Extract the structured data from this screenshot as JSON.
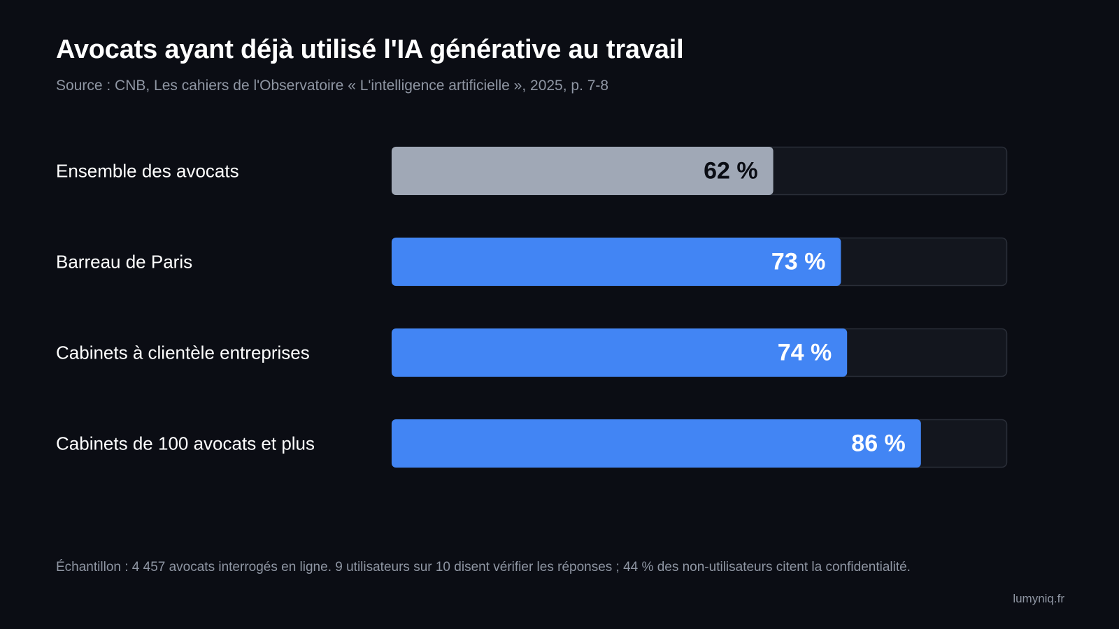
{
  "header": {
    "title": "Avocats ayant déjà utilisé l'IA générative au travail",
    "source": "Source : CNB, Les cahiers de l'Observatoire « L'intelligence artificielle », 2025, p. 7-8"
  },
  "chart_data": {
    "type": "bar",
    "orientation": "horizontal",
    "title": "Avocats ayant déjà utilisé l'IA générative au travail",
    "categories": [
      "Ensemble des avocats",
      "Barreau de Paris",
      "Cabinets à clientèle entreprises",
      "Cabinets de 100 avocats et plus"
    ],
    "values": [
      62,
      73,
      74,
      86
    ],
    "value_labels": [
      "62 %",
      "73 %",
      "74 %",
      "86 %"
    ],
    "xlim": [
      0,
      100
    ],
    "unit": "%",
    "grid": false,
    "legend": "none",
    "colors": {
      "highlight": "#a0a8b6",
      "bar": "#4285f4",
      "track": "#13161e",
      "track_border": "#2a2e38",
      "highlight_text": "#0b0d14",
      "bar_text": "#ffffff"
    },
    "highlight_index": 0
  },
  "footer": {
    "note": "Échantillon : 4 457 avocats interrogés en ligne. 9 utilisateurs sur 10 disent vérifier les réponses ; 44 % des non-utilisateurs citent la confidentialité.",
    "brand": "lumyniq.fr"
  }
}
